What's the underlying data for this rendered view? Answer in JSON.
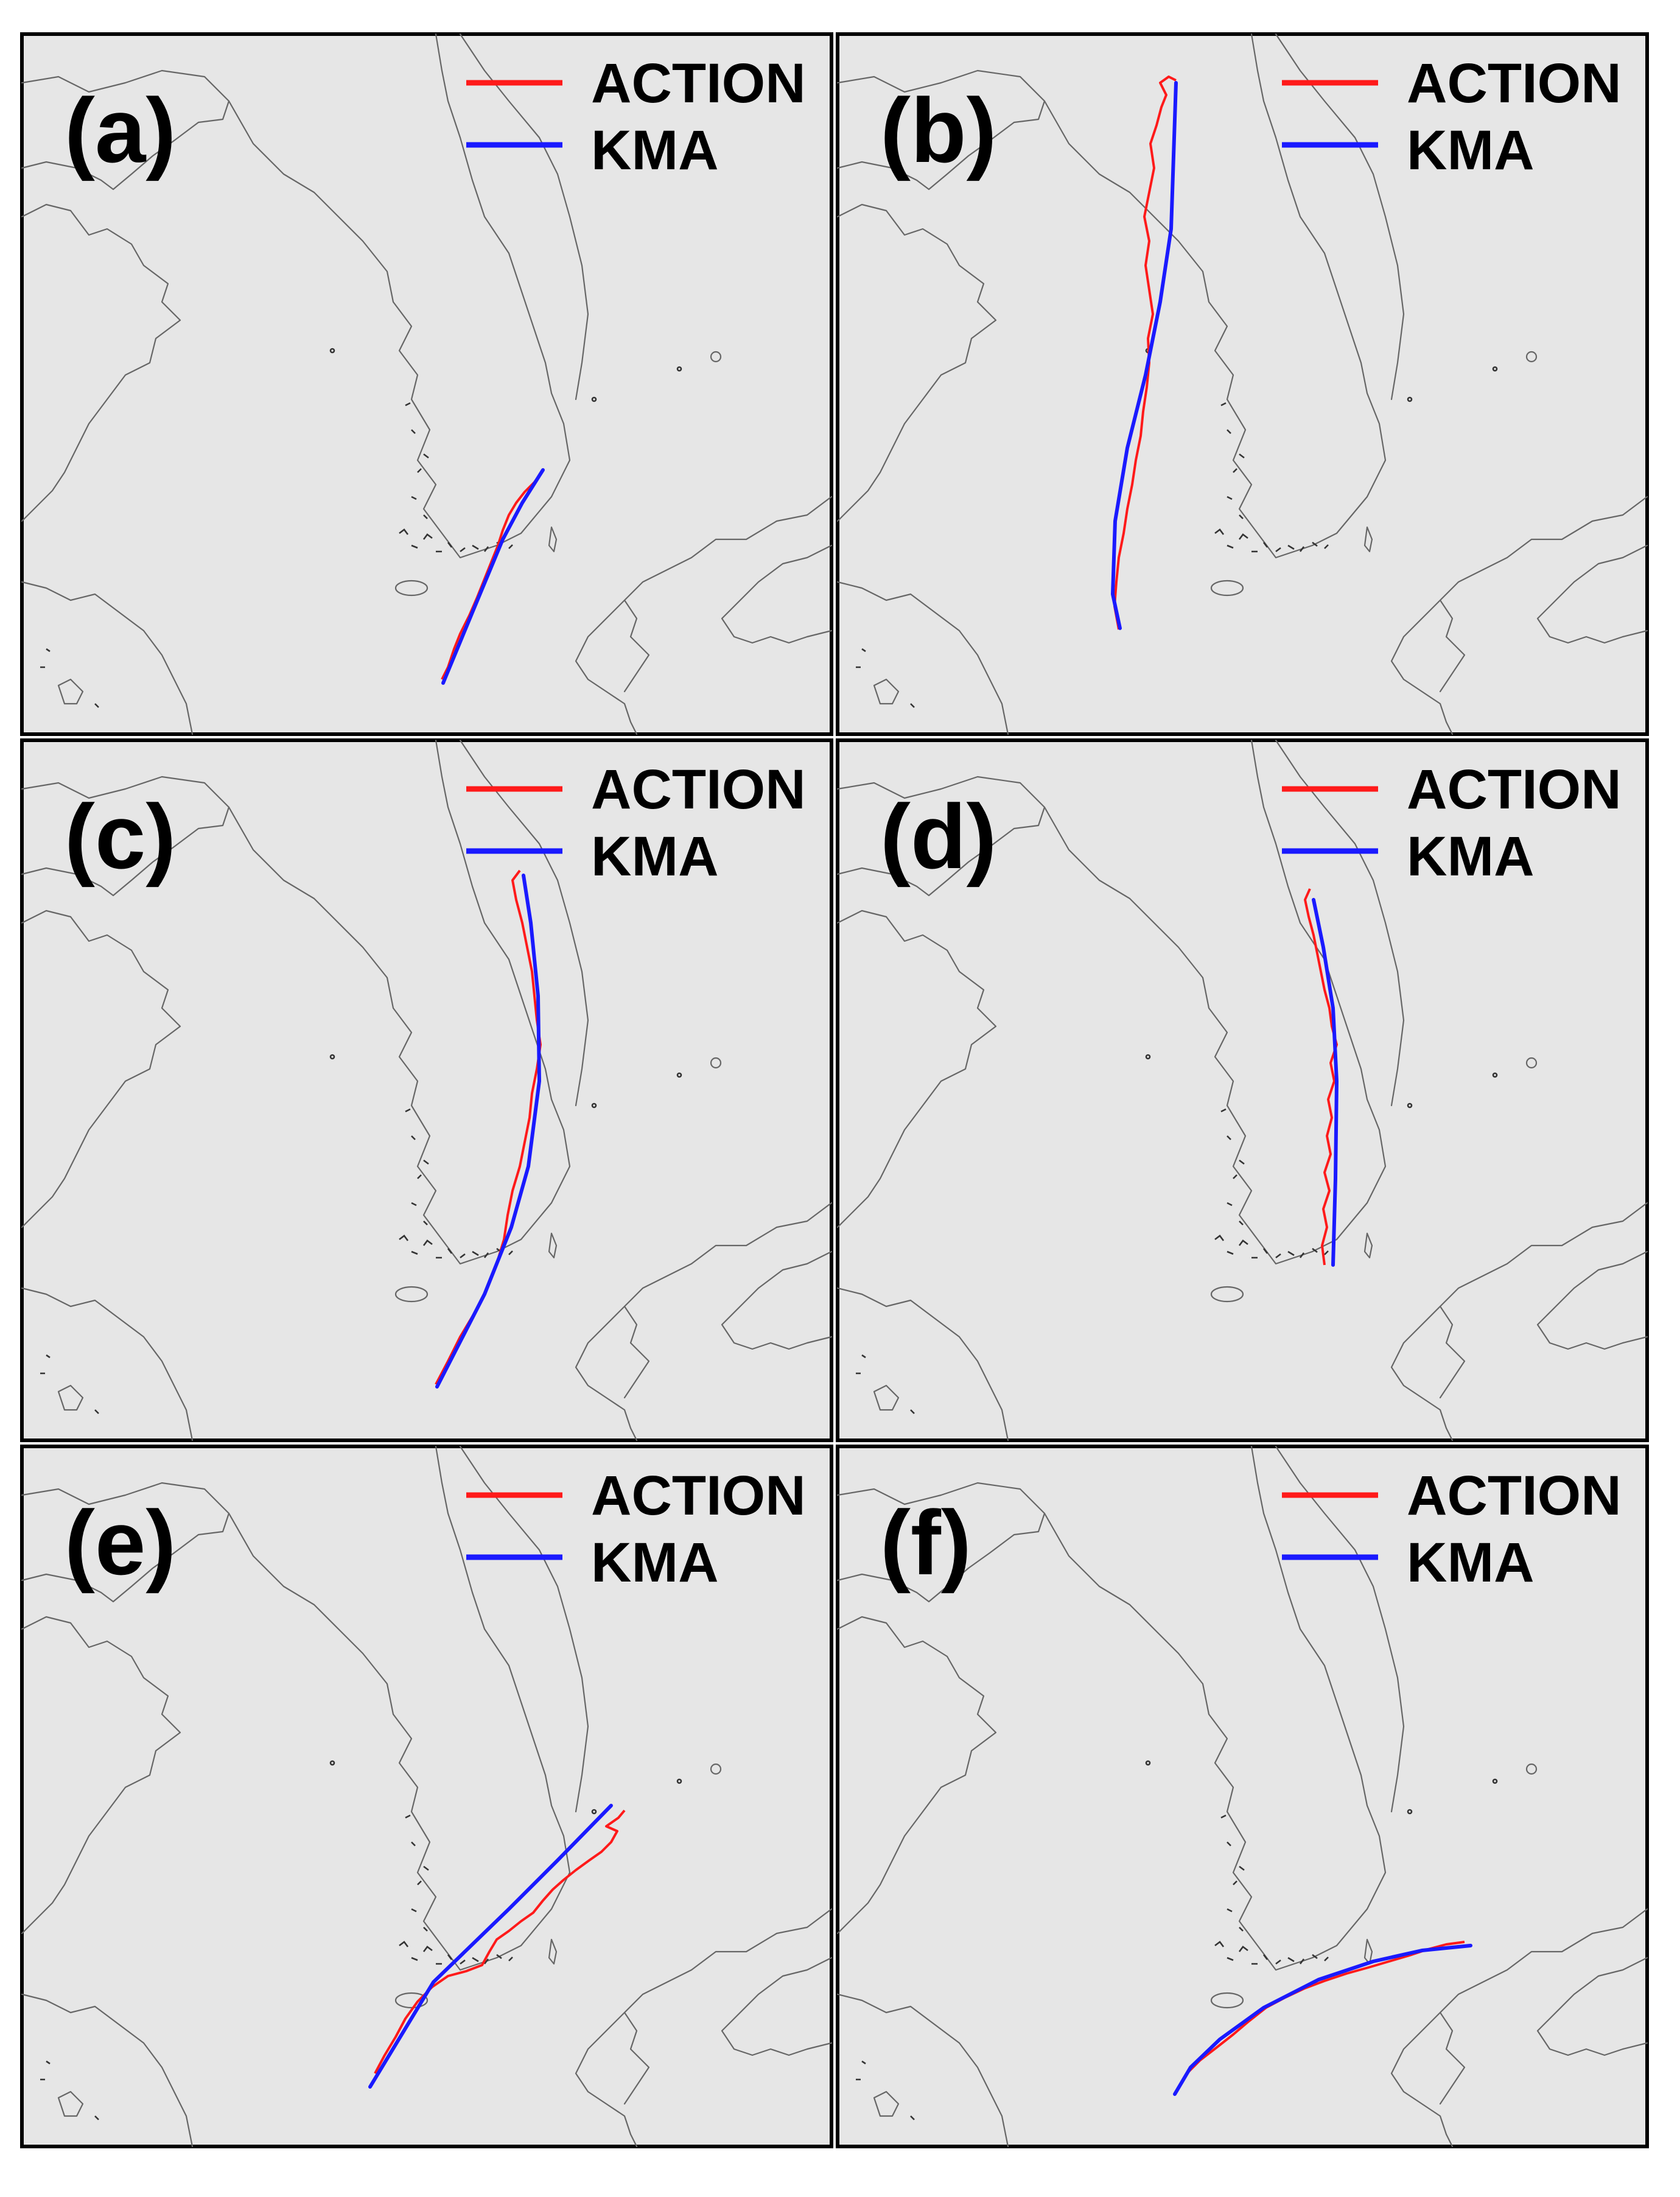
{
  "colors": {
    "action": "#ff1a1a",
    "kma": "#1a1aff",
    "land_background": "#e6e6e6",
    "coastline": "#666666"
  },
  "legend": {
    "action_label": "ACTION",
    "kma_label": "KMA"
  },
  "panels": [
    {
      "id": "a",
      "label": "(a)"
    },
    {
      "id": "b",
      "label": "(b)"
    },
    {
      "id": "c",
      "label": "(c)"
    },
    {
      "id": "d",
      "label": "(d)"
    },
    {
      "id": "e",
      "label": "(e)"
    },
    {
      "id": "f",
      "label": "(f)"
    }
  ]
}
